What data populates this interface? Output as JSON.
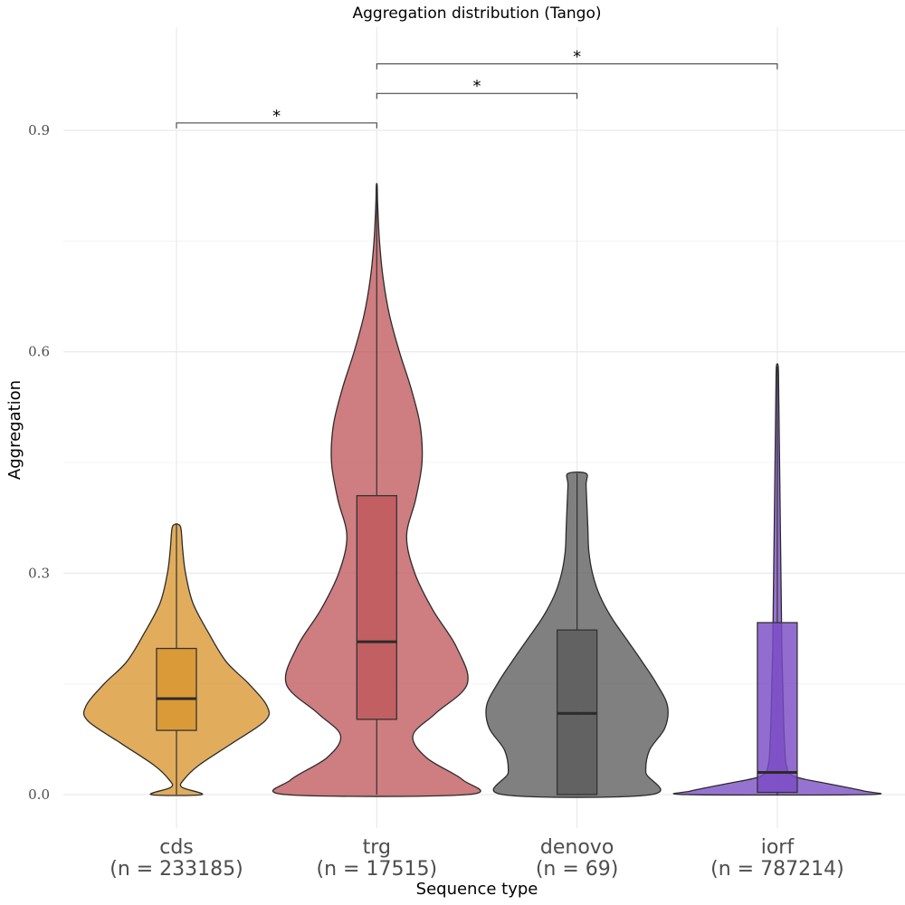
{
  "chart_data": {
    "type": "violin",
    "title": "Aggregation distribution (Tango)",
    "xlabel": "Sequence type",
    "ylabel": "Aggregation",
    "ylim": [
      -0.05,
      1.04
    ],
    "yticks": [
      "0.0",
      "0.3",
      "0.6",
      "0.9"
    ],
    "ytick_values": [
      0.0,
      0.3,
      0.6,
      0.9
    ],
    "grid": true,
    "categories": [
      {
        "name": "cds",
        "n_label": "(n = 233185)",
        "color": "#d9962f",
        "box": {
          "q1": 0.087,
          "median": 0.13,
          "q3": 0.198,
          "lower": 0.0,
          "upper": 0.366
        },
        "violin": {
          "y": [
            0.0,
            0.01,
            0.02,
            0.04,
            0.07,
            0.1,
            0.12,
            0.15,
            0.18,
            0.22,
            0.26,
            0.3,
            0.33,
            0.36,
            0.366
          ],
          "w": [
            0.28,
            0.06,
            0.08,
            0.25,
            0.62,
            0.98,
            1.0,
            0.8,
            0.55,
            0.35,
            0.18,
            0.1,
            0.07,
            0.05,
            0.02
          ]
        }
      },
      {
        "name": "trg",
        "n_label": "(n = 17515)",
        "color": "#c0595c",
        "box": {
          "q1": 0.102,
          "median": 0.207,
          "q3": 0.405,
          "lower": 0.0,
          "upper": 0.825
        },
        "violin": {
          "y": [
            0.0,
            0.02,
            0.05,
            0.08,
            0.11,
            0.15,
            0.2,
            0.25,
            0.3,
            0.35,
            0.4,
            0.45,
            0.5,
            0.55,
            0.6,
            0.65,
            0.7,
            0.75,
            0.8,
            0.825
          ],
          "w": [
            1.0,
            0.95,
            0.55,
            0.4,
            0.65,
            1.0,
            0.88,
            0.62,
            0.42,
            0.33,
            0.43,
            0.5,
            0.48,
            0.38,
            0.25,
            0.14,
            0.07,
            0.03,
            0.01,
            0.005
          ]
        }
      },
      {
        "name": "denovo",
        "n_label": "(n = 69)",
        "color": "#5c5c5c",
        "box": {
          "q1": 0.0,
          "median": 0.11,
          "q3": 0.223,
          "lower": 0.0,
          "upper": 0.435
        },
        "violin": {
          "y": [
            0.0,
            0.03,
            0.06,
            0.09,
            0.12,
            0.15,
            0.18,
            0.21,
            0.24,
            0.27,
            0.3,
            0.33,
            0.36,
            0.39,
            0.42,
            0.435
          ],
          "w": [
            0.82,
            0.76,
            0.8,
            0.97,
            1.0,
            0.88,
            0.72,
            0.55,
            0.38,
            0.25,
            0.17,
            0.13,
            0.12,
            0.11,
            0.1,
            0.1
          ]
        }
      },
      {
        "name": "iorf",
        "n_label": "(n = 787214)",
        "color": "#7a4cc4",
        "box": {
          "q1": 0.003,
          "median": 0.03,
          "q3": 0.233,
          "lower": 0.0,
          "upper": 0.58
        },
        "violin": {
          "y": [
            0.0,
            0.005,
            0.015,
            0.025,
            0.04,
            0.07,
            0.1,
            0.15,
            0.2,
            0.25,
            0.3,
            0.35,
            0.4,
            0.45,
            0.5,
            0.55,
            0.58
          ],
          "w": [
            1.0,
            0.95,
            0.55,
            0.18,
            0.1,
            0.08,
            0.07,
            0.06,
            0.05,
            0.045,
            0.04,
            0.035,
            0.03,
            0.025,
            0.02,
            0.015,
            0.01
          ]
        }
      }
    ],
    "comparisons": [
      {
        "from": "cds",
        "to": "trg",
        "y": 0.91,
        "label": "*"
      },
      {
        "from": "trg",
        "to": "denovo",
        "y": 0.95,
        "label": "*"
      },
      {
        "from": "trg",
        "to": "iorf",
        "y": 0.99,
        "label": "*"
      }
    ]
  }
}
